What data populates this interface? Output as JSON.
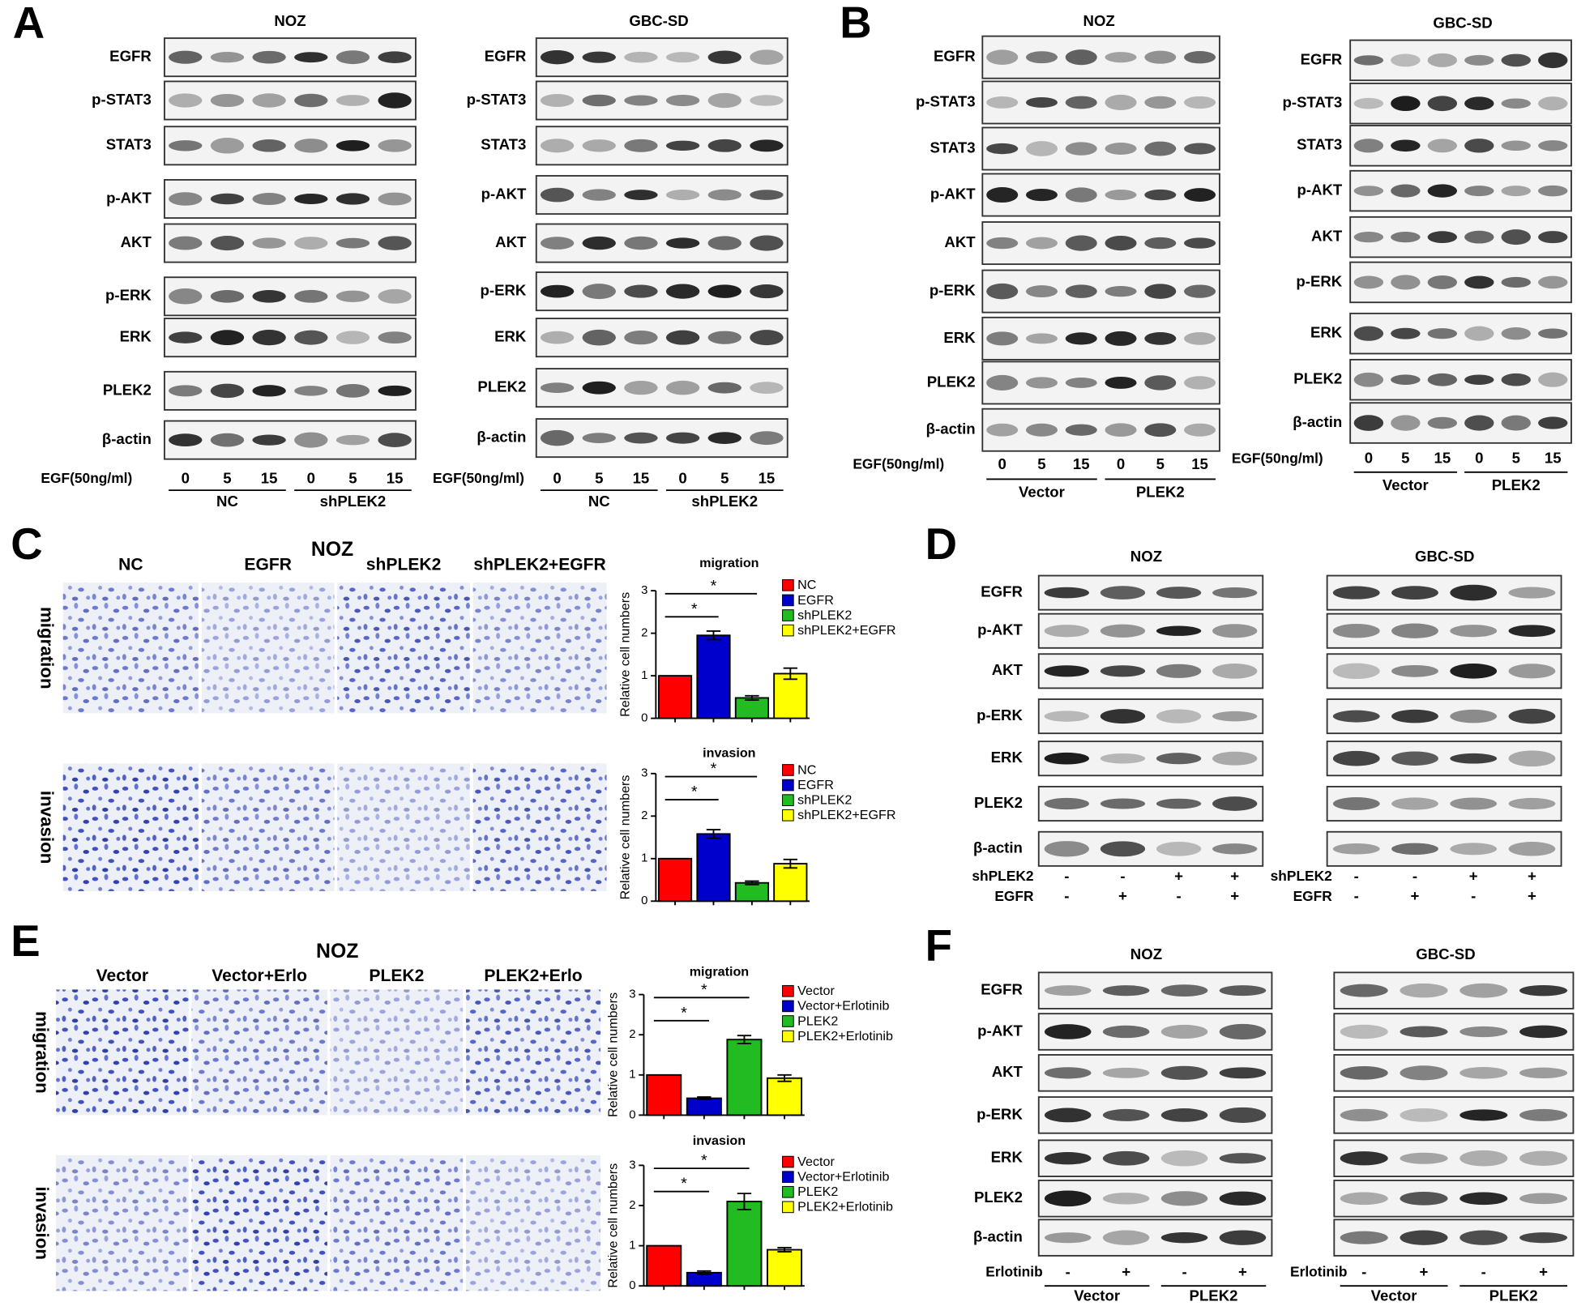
{
  "panels": [
    {
      "label": "A",
      "blots": [
        {
          "title": "NOZ",
          "rows": [
            "EGFR",
            "p-STAT3",
            "STAT3",
            "p-AKT",
            "AKT",
            "p-ERK",
            "ERK",
            "PLEK2",
            "β-actin"
          ],
          "conditions": [
            {
              "label": "EGF(50ng/ml)",
              "lanes": [
                "0",
                "5",
                "15",
                "0",
                "5",
                "15"
              ]
            }
          ],
          "groups": [
            "NC",
            "shPLEK2"
          ]
        },
        {
          "title": "GBC-SD",
          "rows": [
            "EGFR",
            "p-STAT3",
            "STAT3",
            "p-AKT",
            "AKT",
            "p-ERK",
            "ERK",
            "PLEK2",
            "β-actin"
          ],
          "conditions": [
            {
              "label": "EGF(50ng/ml)",
              "lanes": [
                "0",
                "5",
                "15",
                "0",
                "5",
                "15"
              ]
            }
          ],
          "groups": [
            "NC",
            "shPLEK2"
          ]
        }
      ]
    },
    {
      "label": "B",
      "blots": [
        {
          "title": "NOZ",
          "rows": [
            "EGFR",
            "p-STAT3",
            "STAT3",
            "p-AKT",
            "AKT",
            "p-ERK",
            "ERK",
            "PLEK2",
            "β-actin"
          ],
          "conditions": [
            {
              "label": "EGF(50ng/ml)",
              "lanes": [
                "0",
                "5",
                "15",
                "0",
                "5",
                "15"
              ]
            }
          ],
          "groups": [
            "Vector",
            "PLEK2"
          ]
        },
        {
          "title": "GBC-SD",
          "rows": [
            "EGFR",
            "p-STAT3",
            "STAT3",
            "p-AKT",
            "AKT",
            "p-ERK",
            "ERK",
            "PLEK2",
            "β-actin"
          ],
          "conditions": [
            {
              "label": "EGF(50ng/ml)",
              "lanes": [
                "0",
                "5",
                "15",
                "0",
                "5",
                "15"
              ]
            }
          ],
          "groups": [
            "Vector",
            "PLEK2"
          ]
        }
      ]
    },
    {
      "label": "C",
      "title": "NOZ",
      "columns": [
        "NC",
        "EGFR",
        "shPLEK2",
        "shPLEK2+EGFR"
      ],
      "rows": [
        "migration",
        "invasion"
      ]
    },
    {
      "label": "D",
      "blots": [
        {
          "title": "NOZ",
          "rows": [
            "EGFR",
            "p-AKT",
            "AKT",
            "p-ERK",
            "ERK",
            "PLEK2",
            "β-actin"
          ],
          "conditions": [
            {
              "label": "shPLEK2",
              "lanes": [
                "-",
                "-",
                "+",
                "+"
              ]
            },
            {
              "label": "EGFR",
              "lanes": [
                "-",
                "+",
                "-",
                "+"
              ]
            }
          ]
        },
        {
          "title": "GBC-SD",
          "conditions": [
            {
              "label": "shPLEK2",
              "lanes": [
                "-",
                "-",
                "+",
                "+"
              ]
            },
            {
              "label": "EGFR",
              "lanes": [
                "-",
                "+",
                "-",
                "+"
              ]
            }
          ]
        }
      ]
    },
    {
      "label": "E",
      "title": "NOZ",
      "columns": [
        "Vector",
        "Vector+Erlo",
        "PLEK2",
        "PLEK2+Erlo"
      ],
      "rows": [
        "migration",
        "invasion"
      ]
    },
    {
      "label": "F",
      "blots": [
        {
          "title": "NOZ",
          "rows": [
            "EGFR",
            "p-AKT",
            "AKT",
            "p-ERK",
            "ERK",
            "PLEK2",
            "β-actin"
          ],
          "conditions": [
            {
              "label": "Erlotinib",
              "lanes": [
                "-",
                "+",
                "-",
                "+"
              ]
            }
          ],
          "groups": [
            "Vector",
            "PLEK2"
          ]
        },
        {
          "title": "GBC-SD",
          "conditions": [
            {
              "label": "Erlotinib",
              "lanes": [
                "-",
                "+",
                "-",
                "+"
              ]
            }
          ],
          "groups": [
            "Vector",
            "PLEK2"
          ]
        }
      ]
    }
  ],
  "chart_data": [
    {
      "type": "bar",
      "title": "migration",
      "y_label": "Relative cell numbers",
      "categories": [
        "NC",
        "EGFR",
        "shPLEK2",
        "shPLEK2+EGFR"
      ],
      "colors": [
        "#ff0000",
        "#0000cc",
        "#22bb22",
        "#ffff00"
      ],
      "values": [
        1,
        1.95,
        0.48,
        1.05
      ],
      "errors": [
        0,
        0.1,
        0.05,
        0.13
      ],
      "ylim": [
        0,
        3
      ],
      "yticks": [
        0,
        1,
        2,
        3
      ],
      "annotations": [
        "*",
        "*"
      ]
    },
    {
      "type": "bar",
      "title": "invasion",
      "y_label": "Relative cell numbers",
      "categories": [
        "NC",
        "EGFR",
        "shPLEK2",
        "shPLEK2+EGFR"
      ],
      "colors": [
        "#ff0000",
        "#0000cc",
        "#22bb22",
        "#ffff00"
      ],
      "values": [
        1,
        1.58,
        0.43,
        0.88
      ],
      "errors": [
        0,
        0.1,
        0.04,
        0.1
      ],
      "ylim": [
        0,
        3
      ],
      "yticks": [
        0,
        1,
        2,
        3
      ],
      "annotations": [
        "*",
        "*"
      ]
    },
    {
      "type": "bar",
      "title": "migration",
      "y_label": "Relative cell numbers",
      "categories": [
        "Vector",
        "Vector+Erlotinib",
        "PLEK2",
        "PLEK2+Erlotinib"
      ],
      "colors": [
        "#ff0000",
        "#0000cc",
        "#22bb22",
        "#ffff00"
      ],
      "values": [
        1,
        0.42,
        1.88,
        0.92
      ],
      "errors": [
        0,
        0.03,
        0.1,
        0.08
      ],
      "ylim": [
        0,
        3
      ],
      "yticks": [
        0,
        1,
        2,
        3
      ],
      "annotations": [
        "*",
        "*"
      ]
    },
    {
      "type": "bar",
      "title": "invasion",
      "y_label": "Relative cell numbers",
      "categories": [
        "Vector",
        "Vector+Erlotinib",
        "PLEK2",
        "PLEK2+Erlotinib"
      ],
      "colors": [
        "#ff0000",
        "#0000cc",
        "#22bb22",
        "#ffff00"
      ],
      "values": [
        1,
        0.33,
        2.1,
        0.9
      ],
      "errors": [
        0,
        0.04,
        0.2,
        0.05
      ],
      "ylim": [
        0,
        3
      ],
      "yticks": [
        0,
        1,
        2,
        3
      ],
      "annotations": [
        "*",
        "*"
      ]
    }
  ]
}
